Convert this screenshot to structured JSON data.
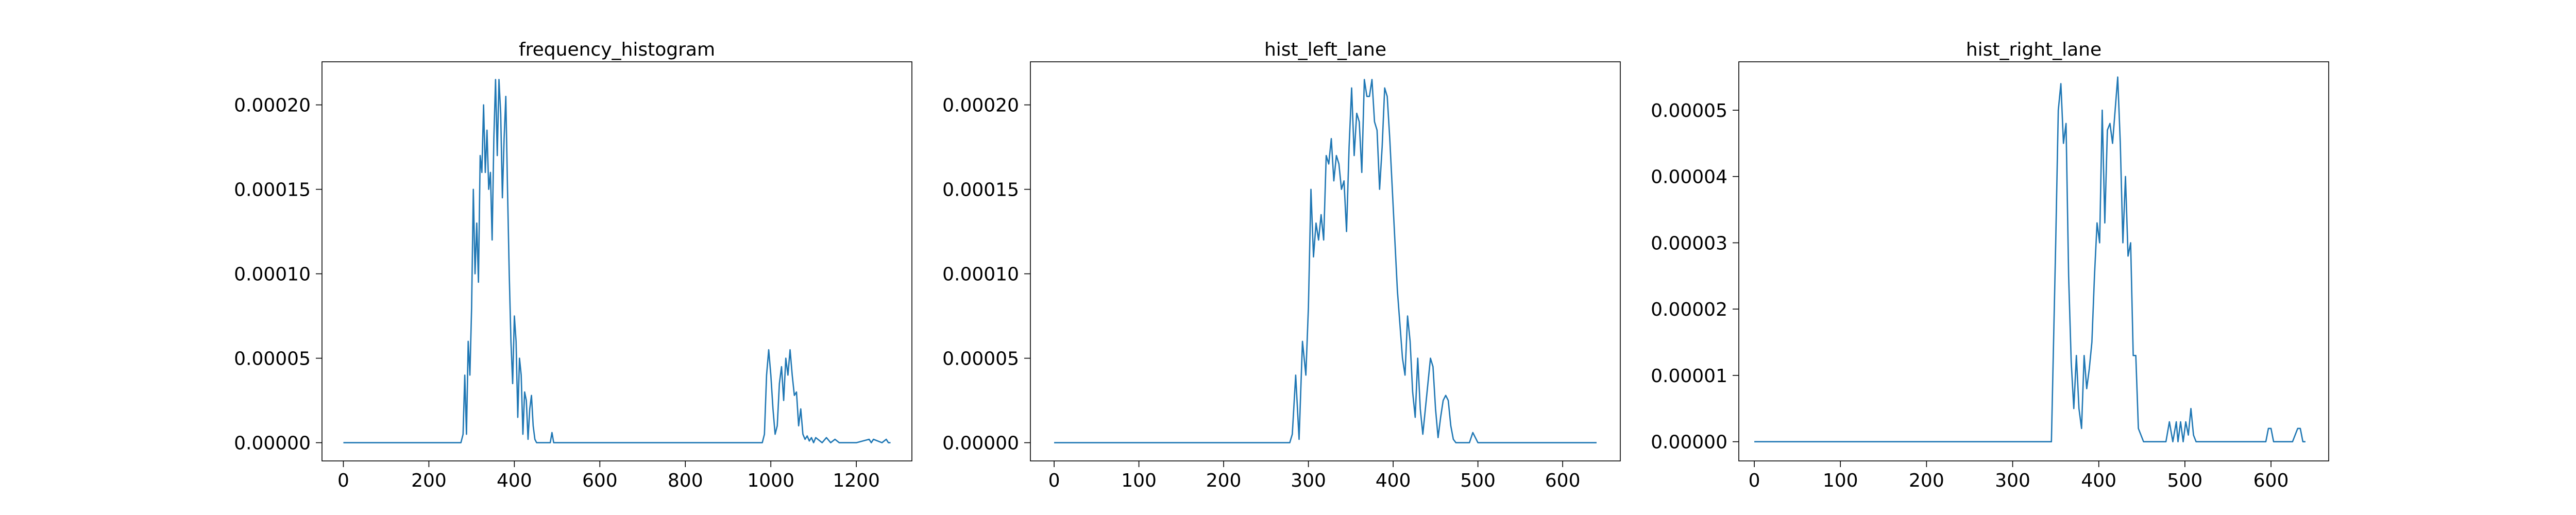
{
  "colors": {
    "series": "#1f77b4"
  },
  "chart_data": [
    {
      "type": "line",
      "title": "frequency_histogram",
      "xlim": [
        -50,
        1330
      ],
      "ylim": [
        -1.08e-05,
        0.0002255
      ],
      "xticks": [
        0,
        200,
        400,
        600,
        800,
        1000,
        1200
      ],
      "xtick_labels": [
        "0",
        "200",
        "400",
        "600",
        "800",
        "1000",
        "1200"
      ],
      "yticks": [
        0,
        5e-05,
        0.0001,
        0.00015,
        0.0002
      ],
      "ytick_labels": [
        "0.00000",
        "0.00005",
        "0.00010",
        "0.00015",
        "0.00020"
      ],
      "grid": false,
      "series": [
        {
          "x": [
            0,
            275,
            280,
            284,
            288,
            292,
            296,
            300,
            304,
            308,
            312,
            316,
            320,
            324,
            328,
            332,
            336,
            340,
            344,
            348,
            352,
            356,
            360,
            364,
            368,
            372,
            376,
            380,
            384,
            388,
            392,
            396,
            400,
            404,
            408,
            412,
            416,
            420,
            424,
            428,
            432,
            436,
            440,
            444,
            448,
            452,
            456,
            460,
            465,
            470,
            478,
            484,
            488,
            492,
            500,
            980,
            985,
            990,
            995,
            1000,
            1005,
            1010,
            1015,
            1020,
            1025,
            1030,
            1035,
            1040,
            1045,
            1050,
            1055,
            1060,
            1065,
            1070,
            1075,
            1080,
            1085,
            1090,
            1095,
            1100,
            1105,
            1110,
            1120,
            1130,
            1140,
            1150,
            1160,
            1170,
            1180,
            1200,
            1230,
            1235,
            1240,
            1260,
            1270,
            1275,
            1280
          ],
          "y": [
            0,
            0,
            5e-06,
            4e-05,
            5e-06,
            6e-05,
            4e-05,
            8e-05,
            0.00015,
            0.0001,
            0.00013,
            9.5e-05,
            0.00017,
            0.00016,
            0.0002,
            0.00016,
            0.000185,
            0.00015,
            0.00016,
            0.00012,
            0.00018,
            0.000215,
            0.00017,
            0.000215,
            0.000195,
            0.000145,
            0.00018,
            0.000205,
            0.00015,
            0.0001,
            6e-05,
            3.5e-05,
            7.5e-05,
            6e-05,
            1.5e-05,
            5e-05,
            4e-05,
            5e-06,
            3e-05,
            2.5e-05,
            2e-06,
            2e-05,
            2.8e-05,
            1e-05,
            2e-06,
            0,
            0,
            0,
            0,
            0,
            0,
            0,
            6e-06,
            0,
            0,
            0,
            5e-06,
            4e-05,
            5.5e-05,
            4e-05,
            2e-05,
            5e-06,
            1e-05,
            3.5e-05,
            4.5e-05,
            2.5e-05,
            5e-05,
            4e-05,
            5.5e-05,
            4e-05,
            2.8e-05,
            3e-05,
            1e-05,
            2e-05,
            5e-06,
            2e-06,
            4e-06,
            1e-06,
            3e-06,
            0,
            3e-06,
            2e-06,
            0,
            3e-06,
            0,
            2e-06,
            0,
            0,
            0,
            0,
            2e-06,
            0,
            2e-06,
            0,
            2e-06,
            0,
            0
          ]
        }
      ]
    },
    {
      "type": "line",
      "title": "hist_left_lane",
      "xlim": [
        -28,
        668
      ],
      "ylim": [
        -1.08e-05,
        0.0002255
      ],
      "xticks": [
        0,
        100,
        200,
        300,
        400,
        500,
        600
      ],
      "xtick_labels": [
        "0",
        "100",
        "200",
        "300",
        "400",
        "500",
        "600"
      ],
      "yticks": [
        0,
        5e-05,
        0.0001,
        0.00015,
        0.0002
      ],
      "ytick_labels": [
        "0.00000",
        "0.00005",
        "0.00010",
        "0.00015",
        "0.00020"
      ],
      "grid": false,
      "series": [
        {
          "x": [
            0,
            278,
            281,
            285,
            289,
            293,
            297,
            300,
            303,
            306,
            309,
            312,
            315,
            318,
            321,
            324,
            327,
            330,
            333,
            336,
            339,
            342,
            345,
            348,
            351,
            354,
            357,
            360,
            363,
            366,
            369,
            372,
            375,
            378,
            381,
            384,
            387,
            390,
            393,
            396,
            399,
            402,
            405,
            408,
            411,
            414,
            417,
            420,
            423,
            426,
            429,
            432,
            435,
            438,
            441,
            444,
            447,
            450,
            453,
            456,
            459,
            462,
            465,
            468,
            471,
            474,
            478,
            482,
            486,
            490,
            494,
            500,
            640
          ],
          "y": [
            0,
            0,
            5e-06,
            4e-05,
            2e-06,
            6e-05,
            4e-05,
            8e-05,
            0.00015,
            0.00011,
            0.00013,
            0.00012,
            0.000135,
            0.00012,
            0.00017,
            0.000165,
            0.00018,
            0.000155,
            0.00017,
            0.000165,
            0.00015,
            0.000155,
            0.000125,
            0.000175,
            0.00021,
            0.00017,
            0.000195,
            0.00019,
            0.00016,
            0.000215,
            0.000205,
            0.000205,
            0.000215,
            0.00019,
            0.000185,
            0.00015,
            0.000175,
            0.00021,
            0.000205,
            0.00018,
            0.00015,
            0.00012,
            9e-05,
            7e-05,
            5e-05,
            4e-05,
            7.5e-05,
            6e-05,
            3e-05,
            1.5e-05,
            5e-05,
            2e-05,
            5e-06,
            2e-05,
            3.5e-05,
            5e-05,
            4.5e-05,
            2e-05,
            3e-06,
            1.5e-05,
            2.5e-05,
            2.8e-05,
            2.5e-05,
            1e-05,
            2e-06,
            0,
            0,
            0,
            0,
            0,
            6e-06,
            0,
            0
          ]
        }
      ]
    },
    {
      "type": "line",
      "title": "hist_right_lane",
      "xlim": [
        -18,
        667
      ],
      "ylim": [
        -2.9e-06,
        5.73e-05
      ],
      "xticks": [
        0,
        100,
        200,
        300,
        400,
        500,
        600
      ],
      "xtick_labels": [
        "0",
        "100",
        "200",
        "300",
        "400",
        "500",
        "600"
      ],
      "yticks": [
        0,
        1e-05,
        2e-05,
        3e-05,
        4e-05,
        5e-05
      ],
      "ytick_labels": [
        "0.00000",
        "0.00001",
        "0.00002",
        "0.00003",
        "0.00004",
        "0.00005"
      ],
      "grid": false,
      "series": [
        {
          "x": [
            0,
            345,
            350,
            353,
            356,
            359,
            362,
            365,
            368,
            371,
            374,
            377,
            380,
            383,
            386,
            389,
            392,
            395,
            398,
            401,
            404,
            407,
            410,
            413,
            416,
            419,
            422,
            425,
            428,
            431,
            434,
            437,
            440,
            443,
            446,
            449,
            452,
            455,
            458,
            461,
            464,
            467,
            470,
            474,
            478,
            482,
            486,
            490,
            492,
            495,
            498,
            501,
            504,
            507,
            510,
            513,
            590,
            594,
            597,
            600,
            603,
            606,
            620,
            625,
            628,
            631,
            634,
            637,
            640
          ],
          "y": [
            0,
            0,
            3e-05,
            5e-05,
            5.4e-05,
            4.5e-05,
            4.8e-05,
            2.5e-05,
            1.2e-05,
            5e-06,
            1.3e-05,
            5e-06,
            2e-06,
            1.3e-05,
            8e-06,
            1.1e-05,
            1.5e-05,
            2.5e-05,
            3.3e-05,
            3e-05,
            5e-05,
            3.3e-05,
            4.7e-05,
            4.8e-05,
            4.5e-05,
            5e-05,
            5.5e-05,
            4.5e-05,
            3e-05,
            4e-05,
            2.8e-05,
            3e-05,
            1.3e-05,
            1.3e-05,
            2e-06,
            1e-06,
            0,
            0,
            0,
            0,
            0,
            0,
            0,
            0,
            0,
            3e-06,
            0,
            3e-06,
            0,
            3e-06,
            0,
            3e-06,
            1e-06,
            5e-06,
            1e-06,
            0,
            0,
            0,
            2e-06,
            2e-06,
            0,
            0,
            0,
            0,
            1e-06,
            2e-06,
            2e-06,
            0,
            0
          ]
        }
      ]
    }
  ]
}
